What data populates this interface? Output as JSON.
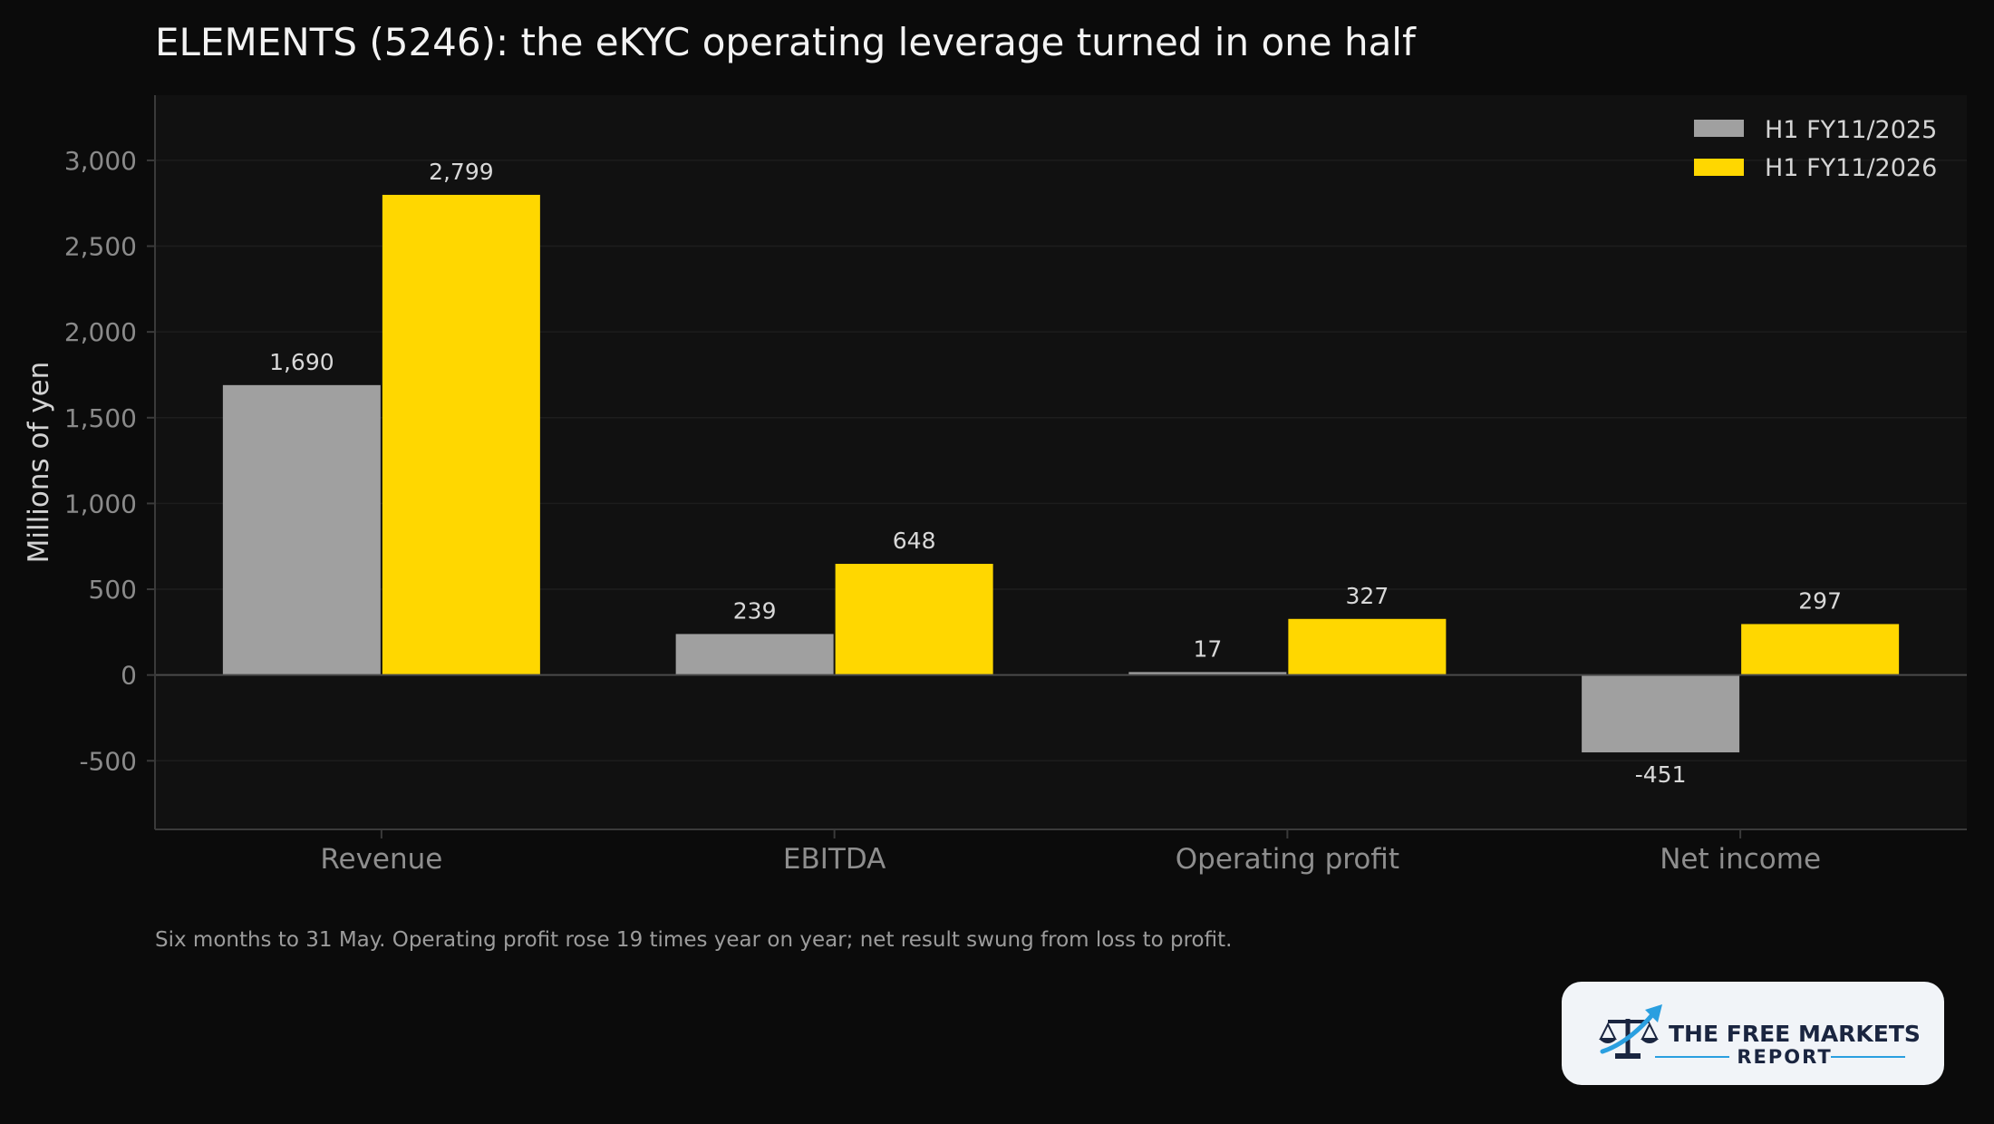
{
  "chart_data": {
    "type": "bar",
    "title": "ELEMENTS (5246): the eKYC operating leverage turned in one half",
    "ylabel": "Millions of yen",
    "xlabel": "",
    "categories": [
      "Revenue",
      "EBITDA",
      "Operating profit",
      "Net income"
    ],
    "series": [
      {
        "name": "H1 FY11/2025",
        "values": [
          1690,
          239,
          17,
          -451
        ],
        "labels": [
          "1,690",
          "239",
          "17",
          "-451"
        ],
        "color": "#a0a0a0"
      },
      {
        "name": "H1 FY11/2026",
        "values": [
          2799,
          648,
          327,
          297
        ],
        "labels": [
          "2,799",
          "648",
          "327",
          "297"
        ],
        "color": "#ffd700"
      }
    ],
    "ylim": [
      -900,
      3380
    ],
    "yticks": [
      -500,
      0,
      500,
      1000,
      1500,
      2000,
      2500,
      3000
    ],
    "ytick_labels": [
      "-500",
      "0",
      "500",
      "1,000",
      "1,500",
      "2,000",
      "2,500",
      "3,000"
    ],
    "grid": true,
    "legend_position": "top-right",
    "caption": "Six months to 31 May. Operating profit rose 19 times year on year; net result swung from loss to profit."
  },
  "colors": {
    "background": "#0b0b0b",
    "plot_background": "#111111",
    "gridline": "#1d1d1d",
    "axis": "#3a3a3a",
    "zero_line": "#4a4a4a"
  },
  "logo": {
    "line1": "THE FREE MARKETS",
    "line2": "REPORT",
    "icon": "scales-with-arrow-icon"
  }
}
